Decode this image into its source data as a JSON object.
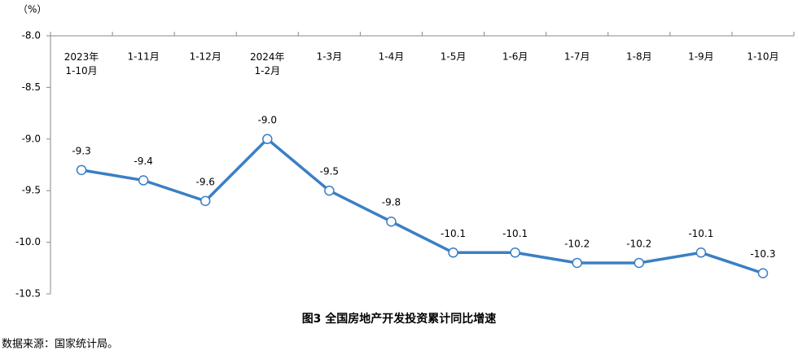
{
  "chart_data": {
    "type": "line",
    "y_axis_label": "（%）",
    "title": "图3 全国房地产开发投资累计同比增速",
    "source": "数据来源：国家统计局。",
    "categories": [
      "2023年\n1-10月",
      "1-11月",
      "1-12月",
      "2024年\n1-2月",
      "1-3月",
      "1-4月",
      "1-5月",
      "1-6月",
      "1-7月",
      "1-8月",
      "1-9月",
      "1-10月"
    ],
    "series": [
      {
        "color": "#3b7fc4",
        "values": [
          -9.3,
          -9.4,
          -9.6,
          -9,
          -9.5,
          -9.8,
          -10.1,
          -10.1,
          -10.2,
          -10.2,
          -10.1,
          -10.3
        ],
        "value_labels": [
          "-9.3",
          "-9.4",
          "-9.6",
          "-9.0",
          "-9.5",
          "-9.8",
          "-10.1",
          "-10.1",
          "-10.2",
          "-10.2",
          "-10.1",
          "-10.3"
        ]
      }
    ],
    "ylim": [
      -10.5,
      -8
    ],
    "yticks": [
      {
        "value": -8,
        "label": "-8.0"
      },
      -8.5,
      {
        "value": -9,
        "label": "-9.0"
      },
      -9.5,
      {
        "value": -10,
        "label": "-10.0"
      },
      -10.5
    ]
  }
}
